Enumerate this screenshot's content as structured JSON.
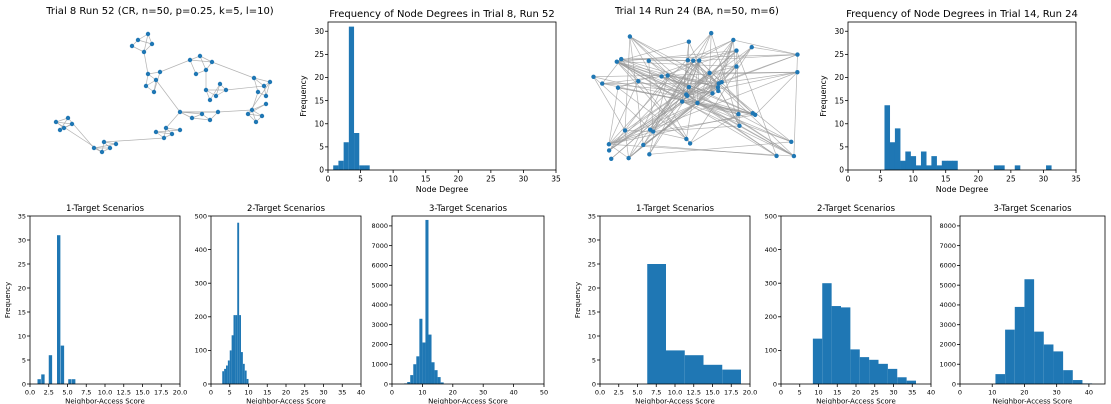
{
  "colors": {
    "bar": "#1f77b4",
    "node": "#1f77b4",
    "edge": "#999999"
  },
  "networks": [
    {
      "title": "Trial 8 Run 52 (CR, n=50, p=0.25, k=5, l=10)",
      "type": "CR"
    },
    {
      "title": "Trial 14 Run 24 (BA, n=50, m=6)",
      "type": "BA"
    }
  ],
  "chart_data": [
    {
      "id": "deg1",
      "type": "bar",
      "title": "Frequency of Node Degrees in Trial 8, Run 52",
      "xlabel": "Node Degree",
      "ylabel": "Frequency",
      "xlim": [
        0,
        35
      ],
      "ylim": [
        0,
        32
      ],
      "xticks": [
        0,
        5,
        10,
        15,
        20,
        25,
        30,
        35
      ],
      "yticks": [
        0,
        5,
        10,
        15,
        20,
        25,
        30
      ],
      "bin_width": 0.8,
      "bars": [
        [
          0.8,
          1
        ],
        [
          1.6,
          2
        ],
        [
          2.4,
          6
        ],
        [
          3.2,
          31
        ],
        [
          4.0,
          8
        ],
        [
          4.8,
          1
        ],
        [
          5.6,
          1
        ]
      ]
    },
    {
      "id": "deg2",
      "type": "bar",
      "title": "Frequency of Node Degrees in Trial 14, Run 24",
      "xlabel": "Node Degree",
      "ylabel": "Frequency",
      "xlim": [
        0,
        35
      ],
      "ylim": [
        0,
        32
      ],
      "xticks": [
        0,
        5,
        10,
        15,
        20,
        25,
        30,
        35
      ],
      "yticks": [
        0,
        5,
        10,
        15,
        20,
        25,
        30
      ],
      "bin_width": 0.85,
      "bars": [
        [
          5.6,
          14
        ],
        [
          6.4,
          6
        ],
        [
          7.2,
          9
        ],
        [
          8.0,
          2
        ],
        [
          8.8,
          4
        ],
        [
          9.6,
          3
        ],
        [
          10.4,
          1
        ],
        [
          11.2,
          4
        ],
        [
          12.0,
          1
        ],
        [
          12.8,
          3
        ],
        [
          13.6,
          1
        ],
        [
          14.4,
          2
        ],
        [
          15.2,
          2
        ],
        [
          16.0,
          2
        ],
        [
          22.4,
          1
        ],
        [
          23.2,
          1
        ],
        [
          25.6,
          1
        ],
        [
          30.4,
          1
        ]
      ]
    },
    {
      "id": "s1",
      "type": "bar",
      "title": "1-Target Scenarios",
      "xlabel": "Neighbor-Access Score",
      "ylabel": "Frequency",
      "xlim": [
        0,
        20
      ],
      "ylim": [
        0,
        35
      ],
      "xticks": [
        0.0,
        2.5,
        5.0,
        7.5,
        10.0,
        12.5,
        15.0,
        17.5,
        20.0
      ],
      "xtick_decimals": 1,
      "yticks": [
        0,
        5,
        10,
        15,
        20,
        25,
        30,
        35
      ],
      "bin_width": 0.45,
      "bars": [
        [
          1.0,
          1
        ],
        [
          1.5,
          2
        ],
        [
          2.0,
          0
        ],
        [
          2.5,
          6
        ],
        [
          3.0,
          0
        ],
        [
          3.6,
          31
        ],
        [
          4.1,
          8
        ],
        [
          4.6,
          0
        ],
        [
          5.1,
          1
        ],
        [
          5.6,
          1
        ]
      ]
    },
    {
      "id": "s2",
      "type": "bar",
      "title": "2-Target Scenarios",
      "xlabel": "Neighbor-Access Score",
      "ylabel": "",
      "xlim": [
        0,
        40
      ],
      "ylim": [
        0,
        500
      ],
      "xticks": [
        0,
        5,
        10,
        15,
        20,
        25,
        30,
        35,
        40
      ],
      "yticks": [
        0,
        100,
        200,
        300,
        400,
        500
      ],
      "bin_width": 0.5,
      "bars": [
        [
          3.0,
          38
        ],
        [
          3.5,
          45
        ],
        [
          4.0,
          55
        ],
        [
          4.5,
          70
        ],
        [
          5.0,
          100
        ],
        [
          5.5,
          145
        ],
        [
          6.0,
          205
        ],
        [
          6.5,
          205
        ],
        [
          7.0,
          480
        ],
        [
          7.5,
          205
        ],
        [
          8.0,
          95
        ],
        [
          8.5,
          60
        ],
        [
          9.0,
          40
        ],
        [
          9.5,
          15
        ]
      ]
    },
    {
      "id": "s3",
      "type": "bar",
      "title": "3-Target Scenarios",
      "xlabel": "Neighbor-Access Score",
      "ylabel": "",
      "xlim": [
        0,
        50
      ],
      "ylim": [
        0,
        8500
      ],
      "xticks": [
        0,
        10,
        20,
        30,
        40,
        50
      ],
      "yticks": [
        0,
        1000,
        2000,
        3000,
        4000,
        5000,
        6000,
        7000,
        8000
      ],
      "bin_width": 1.0,
      "bars": [
        [
          4,
          30
        ],
        [
          5,
          100
        ],
        [
          6,
          450
        ],
        [
          7,
          1000
        ],
        [
          8,
          1400
        ],
        [
          9,
          3300
        ],
        [
          10,
          2100
        ],
        [
          11,
          8300
        ],
        [
          12,
          2500
        ],
        [
          13,
          1100
        ],
        [
          14,
          700
        ],
        [
          15,
          350
        ],
        [
          16,
          80
        ]
      ]
    },
    {
      "id": "s4",
      "type": "bar",
      "title": "1-Target Scenarios",
      "xlabel": "Neighbor-Access Score",
      "ylabel": "Frequency",
      "xlim": [
        0,
        20
      ],
      "ylim": [
        0,
        35
      ],
      "xticks": [
        0.0,
        2.5,
        5.0,
        7.5,
        10.0,
        12.5,
        15.0,
        17.5,
        20.0
      ],
      "xtick_decimals": 1,
      "yticks": [
        0,
        5,
        10,
        15,
        20,
        25,
        30,
        35
      ],
      "bin_width": 2.5,
      "bars": [
        [
          6.3,
          25
        ],
        [
          8.8,
          7
        ],
        [
          11.3,
          6
        ],
        [
          13.8,
          4
        ],
        [
          16.3,
          3
        ]
      ]
    },
    {
      "id": "s5",
      "type": "bar",
      "title": "2-Target Scenarios",
      "xlabel": "Neighbor-Access Score",
      "ylabel": "",
      "xlim": [
        0,
        40
      ],
      "ylim": [
        0,
        500
      ],
      "xticks": [
        0,
        5,
        10,
        15,
        20,
        25,
        30,
        35,
        40
      ],
      "yticks": [
        0,
        100,
        200,
        300,
        400,
        500
      ],
      "bin_width": 2.5,
      "bars": [
        [
          8.5,
          135
        ],
        [
          11,
          300
        ],
        [
          13.5,
          232
        ],
        [
          16,
          228
        ],
        [
          18.5,
          103
        ],
        [
          21,
          80
        ],
        [
          23.5,
          72
        ],
        [
          26,
          60
        ],
        [
          28.5,
          45
        ],
        [
          31,
          20
        ],
        [
          33.5,
          10
        ],
        [
          36,
          0
        ]
      ]
    },
    {
      "id": "s6",
      "type": "bar",
      "title": "3-Target Scenarios",
      "xlabel": "Neighbor-Access Score",
      "ylabel": "",
      "xlim": [
        0,
        45
      ],
      "ylim": [
        0,
        8500
      ],
      "xticks": [
        0,
        10,
        20,
        30,
        40
      ],
      "yticks": [
        0,
        1000,
        2000,
        3000,
        4000,
        5000,
        6000,
        7000,
        8000
      ],
      "bin_width": 3.0,
      "bars": [
        [
          11,
          500
        ],
        [
          14,
          2750
        ],
        [
          17,
          3900
        ],
        [
          20,
          5300
        ],
        [
          23,
          2650
        ],
        [
          26,
          2000
        ],
        [
          29,
          1650
        ],
        [
          32,
          700
        ],
        [
          35,
          200
        ],
        [
          38,
          30
        ]
      ]
    }
  ]
}
